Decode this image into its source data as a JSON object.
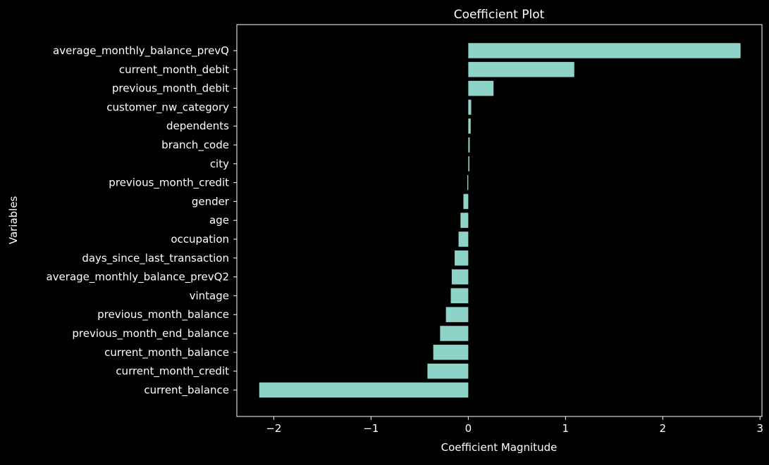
{
  "chart_data": {
    "type": "bar",
    "orientation": "horizontal",
    "title": "Coefficient Plot",
    "xlabel": "Coefficient Magnitude",
    "ylabel": "Variables",
    "xlim": [
      -2.38,
      3.02
    ],
    "xticks": [
      {
        "value": -2,
        "label": "−2"
      },
      {
        "value": -1,
        "label": "−1"
      },
      {
        "value": 0,
        "label": "0"
      },
      {
        "value": 1,
        "label": "1"
      },
      {
        "value": 2,
        "label": "2"
      },
      {
        "value": 3,
        "label": "3"
      }
    ],
    "grid": false,
    "categories": [
      "average_monthly_balance_prevQ",
      "current_month_debit",
      "previous_month_debit",
      "customer_nw_category",
      "dependents",
      "branch_code",
      "city",
      "previous_month_credit",
      "gender",
      "age",
      "occupation",
      "days_since_last_transaction",
      "average_monthly_balance_prevQ2",
      "vintage",
      "previous_month_balance",
      "previous_month_end_balance",
      "current_month_balance",
      "current_month_credit",
      "current_balance"
    ],
    "values": [
      2.8,
      1.09,
      0.26,
      0.03,
      0.025,
      0.015,
      0.012,
      -0.01,
      -0.05,
      -0.08,
      -0.1,
      -0.14,
      -0.17,
      -0.18,
      -0.23,
      -0.29,
      -0.36,
      -0.42,
      -2.15
    ]
  },
  "colors": {
    "background": "#000000",
    "bar": "#8dd3c7",
    "axis": "#ffffff",
    "text": "#ffffff"
  }
}
